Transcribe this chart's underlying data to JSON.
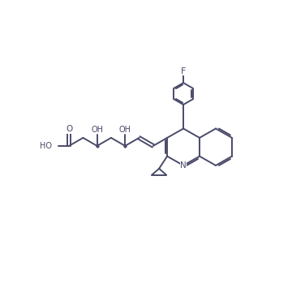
{
  "background_color": "#ffffff",
  "line_color": "#4a4a6a",
  "line_width": 1.4,
  "text_color": "#4a4a6a",
  "label_F": "F",
  "label_N": "N",
  "label_O": "O",
  "label_OH1": "OH",
  "label_OH2": "OH",
  "label_HO": "HO",
  "figsize": [
    3.6,
    3.6
  ],
  "dpi": 100
}
